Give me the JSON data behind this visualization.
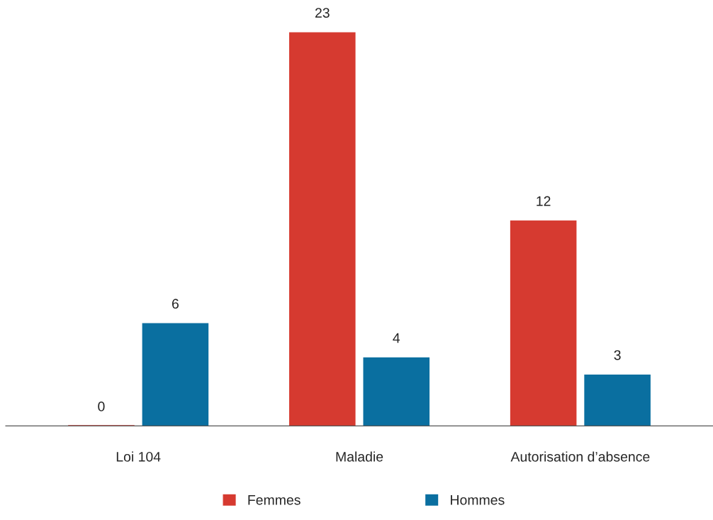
{
  "chart_data": {
    "type": "bar",
    "categories": [
      "Loi 104",
      "Maladie",
      "Autorisation d’absence"
    ],
    "series": [
      {
        "name": "Femmes",
        "color": "#d63a30",
        "values": [
          0,
          23,
          12
        ]
      },
      {
        "name": "Hommes",
        "color": "#0a6fa0",
        "values": [
          6,
          4,
          3
        ]
      }
    ],
    "data_labels": true,
    "legend": "bottom",
    "grid": false
  }
}
